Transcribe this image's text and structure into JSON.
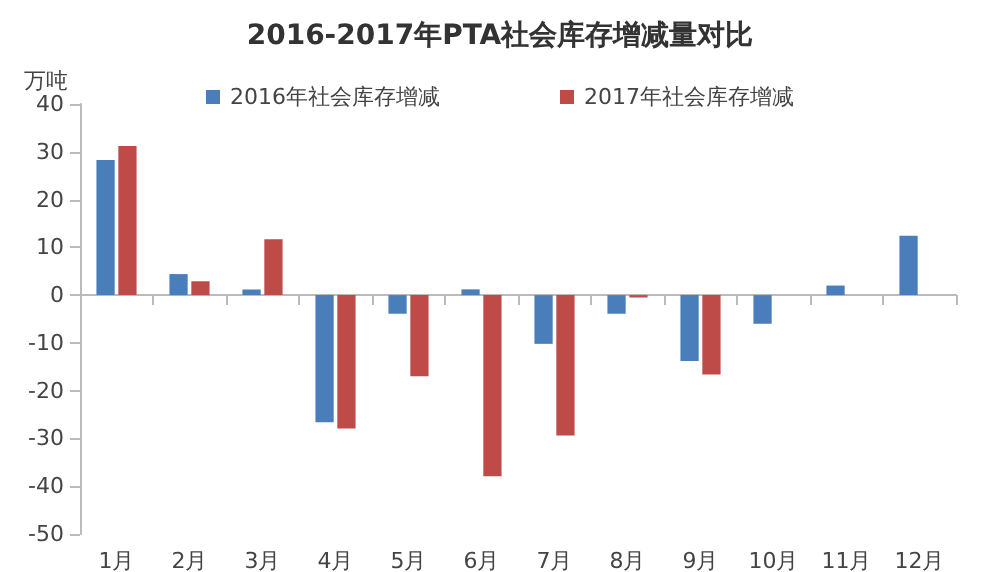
{
  "chart_data": {
    "type": "bar",
    "title": "2016-2017年PTA社会库存增减量对比",
    "ylabel": "万吨",
    "categories": [
      "1月",
      "2月",
      "3月",
      "4月",
      "5月",
      "6月",
      "7月",
      "8月",
      "9月",
      "10月",
      "11月",
      "12月"
    ],
    "series": [
      {
        "name": "2016年社会库存增减",
        "color": "#4a7ebb",
        "values": [
          28.3,
          4.4,
          1.2,
          -26.6,
          -3.9,
          1.2,
          -10.2,
          -3.9,
          -13.8,
          -6,
          2,
          12.4
        ]
      },
      {
        "name": "2017年社会库存增减",
        "color": "#be4b48",
        "values": [
          31.2,
          2.9,
          11.7,
          -27.9,
          -17,
          -37.9,
          -29.4,
          -0.5,
          -16.6,
          null,
          null,
          null
        ]
      }
    ],
    "ylim": [
      -50,
      40
    ],
    "yticks": [
      -50,
      -40,
      -30,
      -20,
      -10,
      0,
      10,
      20,
      30,
      40
    ],
    "legend": "top"
  }
}
